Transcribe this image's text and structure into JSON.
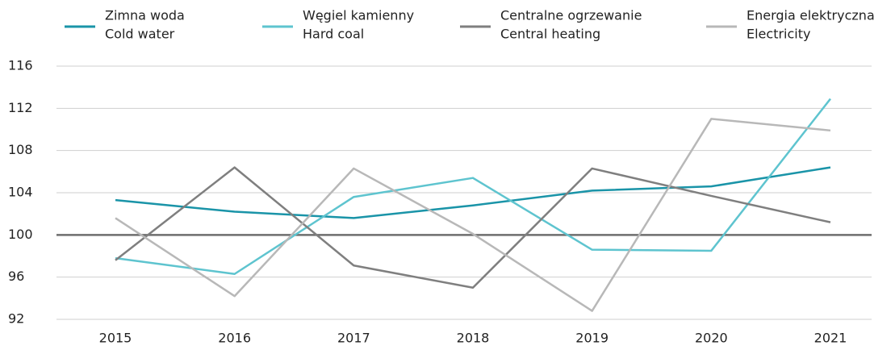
{
  "chart_data": {
    "type": "line",
    "categories": [
      "2015",
      "2016",
      "2017",
      "2018",
      "2019",
      "2020",
      "2021"
    ],
    "series": [
      {
        "name": "Zimna woda",
        "name_en": "Cold water",
        "color": "#1a94a8",
        "values": [
          103.3,
          102.2,
          101.6,
          102.8,
          104.2,
          104.6,
          106.4
        ]
      },
      {
        "name": "Węgiel kamienny",
        "name_en": "Hard coal",
        "color": "#5ec4cf",
        "values": [
          97.8,
          96.3,
          103.6,
          105.4,
          98.6,
          98.5,
          112.9
        ]
      },
      {
        "name": "Centralne ogrzewanie",
        "name_en": "Central heating",
        "color": "#7f7f7f",
        "values": [
          97.6,
          106.4,
          97.1,
          95.0,
          106.3,
          103.7,
          101.2
        ]
      },
      {
        "name": "Energia elektryczna",
        "name_en": "Electricity",
        "color": "#b8b8b8",
        "values": [
          101.6,
          94.2,
          106.3,
          100.1,
          92.8,
          111.0,
          109.9
        ]
      }
    ],
    "ylim": [
      92,
      116
    ],
    "yticks": [
      92,
      96,
      100,
      104,
      108,
      112,
      116
    ],
    "grid": true,
    "reference_line": 100,
    "legend": "top"
  }
}
